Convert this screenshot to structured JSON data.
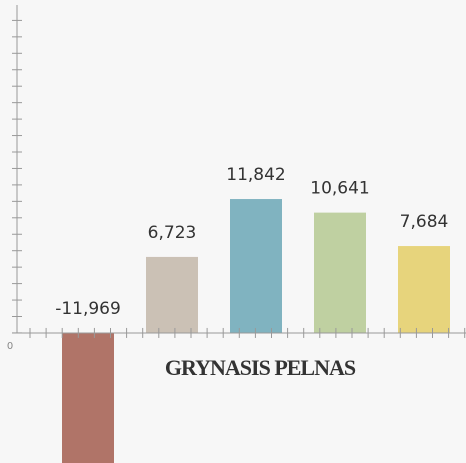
{
  "chart_data": {
    "type": "bar",
    "title": "GRYNASIS PELNAS",
    "categories": [
      null,
      null,
      null,
      null,
      null
    ],
    "values": [
      -11969,
      6723,
      11842,
      10641,
      7684
    ],
    "value_labels": [
      "-11,969",
      "6,723",
      "11,842",
      "10,641",
      "7,684"
    ],
    "colors": [
      "#b07468",
      "#cbc1b5",
      "#80b3c0",
      "#bfd0a1",
      "#e7d47c"
    ],
    "ylim": [
      -11500,
      29000
    ],
    "yticks": [
      0
    ],
    "grid": false
  }
}
